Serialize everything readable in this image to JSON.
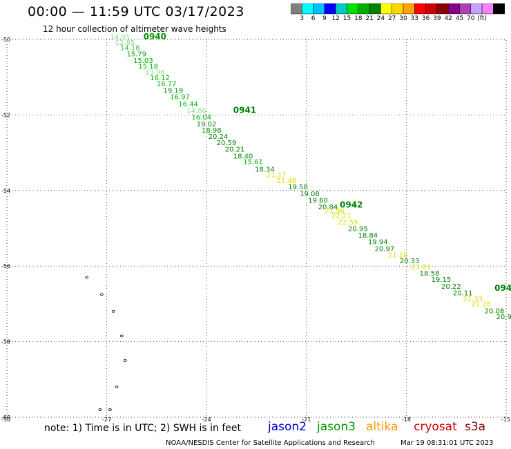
{
  "title": "00:00 — 11:59 UTC 03/17/2023",
  "subtitle": "12 hour collection of altimeter wave heights",
  "color_scale": {
    "colors": [
      "#808080",
      "#00ffff",
      "#00bfff",
      "#0000ff",
      "#00c8c8",
      "#00e000",
      "#00b000",
      "#008000",
      "#ffff00",
      "#ffd700",
      "#ffa500",
      "#ff0000",
      "#cc0000",
      "#8b0000",
      "#8b008b",
      "#b040b0",
      "#c8a0ff",
      "#ff80ff",
      "#000000"
    ],
    "labels": [
      "3",
      "6",
      "9",
      "12",
      "15",
      "18",
      "21",
      "24",
      "27",
      "30",
      "33",
      "36",
      "39",
      "42",
      "45",
      "70",
      "(ft)"
    ]
  },
  "footer": {
    "note": "note: 1) Time is in UTC; 2) SWH is in feet",
    "satellites": [
      {
        "name": "jason2",
        "color": "#0000cc"
      },
      {
        "name": "jason3",
        "color": "#009900"
      },
      {
        "name": "altika",
        "color": "#ff9900"
      },
      {
        "name": "cryosat",
        "color": "#cc0000"
      },
      {
        "name": "s3a",
        "color": "#880000"
      }
    ],
    "credit": "NOAA/NESDIS Center for Satellite Applications and Research",
    "timestamp": "Mar 19 08:31:01 UTC 2023"
  },
  "chart_data": {
    "type": "scatter",
    "title": "00:00 — 11:59 UTC 03/17/2023",
    "subtitle": "12 hour collection of altimeter wave heights",
    "xlabel": "",
    "ylabel": "",
    "xlim": [
      -30,
      -15
    ],
    "ylim": [
      -60,
      -50
    ],
    "x_ticks": [
      -30,
      -27,
      -24,
      -21,
      -18,
      -15
    ],
    "y_ticks": [
      -50,
      -52,
      -54,
      -56,
      -58,
      -60
    ],
    "x_tick_labels": [
      "-30",
      "-27",
      "-24",
      "-21",
      "-18",
      "-15"
    ],
    "y_tick_labels": [
      "-50",
      "-52",
      "-54",
      "-56",
      "-58",
      "-60"
    ],
    "grid": true,
    "time_labels": [
      {
        "label": "0940",
        "x": -25.9,
        "y": -50.0,
        "color": "#009900"
      },
      {
        "label": "0941",
        "x": -23.2,
        "y": -51.95,
        "color": "#008000"
      },
      {
        "label": "0942",
        "x": -20.0,
        "y": -54.45,
        "color": "#008000"
      },
      {
        "label": "094",
        "x": -15.35,
        "y": -56.65,
        "color": "#008000"
      }
    ],
    "points": [
      {
        "x": -26.9,
        "y": -50.0,
        "swh": "14.05",
        "color": "#88dd88"
      },
      {
        "x": -26.75,
        "y": -50.15,
        "swh": "12.85",
        "color": "#88dd88"
      },
      {
        "x": -26.6,
        "y": -50.28,
        "swh": "14.18",
        "color": "#44bb44"
      },
      {
        "x": -26.4,
        "y": -50.45,
        "swh": "15.79",
        "color": "#00b000"
      },
      {
        "x": -26.2,
        "y": -50.62,
        "swh": "15.03",
        "color": "#00b000"
      },
      {
        "x": -26.05,
        "y": -50.78,
        "swh": "15.18",
        "color": "#00b000"
      },
      {
        "x": -25.85,
        "y": -50.93,
        "swh": "13.96",
        "color": "#88dd88"
      },
      {
        "x": -25.7,
        "y": -51.08,
        "swh": "16.12",
        "color": "#00b000"
      },
      {
        "x": -25.5,
        "y": -51.23,
        "swh": "16.77",
        "color": "#00b000"
      },
      {
        "x": -25.3,
        "y": -51.42,
        "swh": "19.19",
        "color": "#008000"
      },
      {
        "x": -25.1,
        "y": -51.58,
        "swh": "16.97",
        "color": "#00b000"
      },
      {
        "x": -24.85,
        "y": -51.77,
        "swh": "16.44",
        "color": "#00b000"
      },
      {
        "x": -24.6,
        "y": -51.95,
        "swh": "14.86",
        "color": "#88dd88"
      },
      {
        "x": -24.45,
        "y": -52.12,
        "swh": "16.04",
        "color": "#00b000"
      },
      {
        "x": -24.3,
        "y": -52.3,
        "swh": "19.02",
        "color": "#008000"
      },
      {
        "x": -24.15,
        "y": -52.47,
        "swh": "18.98",
        "color": "#008000"
      },
      {
        "x": -23.95,
        "y": -52.63,
        "swh": "20.24",
        "color": "#008000"
      },
      {
        "x": -23.7,
        "y": -52.8,
        "swh": "20.59",
        "color": "#008000"
      },
      {
        "x": -23.45,
        "y": -52.97,
        "swh": "20.21",
        "color": "#008000"
      },
      {
        "x": -23.2,
        "y": -53.15,
        "swh": "18.40",
        "color": "#008000"
      },
      {
        "x": -22.9,
        "y": -53.3,
        "swh": "15.61",
        "color": "#00b000"
      },
      {
        "x": -22.55,
        "y": -53.5,
        "swh": "18.34",
        "color": "#008000"
      },
      {
        "x": -22.2,
        "y": -53.65,
        "swh": "21.17",
        "color": "#dddd00"
      },
      {
        "x": -21.9,
        "y": -53.8,
        "swh": "21.48",
        "color": "#dddd00"
      },
      {
        "x": -21.55,
        "y": -53.97,
        "swh": "19.58",
        "color": "#008000"
      },
      {
        "x": -21.2,
        "y": -54.15,
        "swh": "19.08",
        "color": "#008000"
      },
      {
        "x": -20.95,
        "y": -54.32,
        "swh": "19.60",
        "color": "#008000"
      },
      {
        "x": -20.65,
        "y": -54.5,
        "swh": "20.84",
        "color": "#008000"
      },
      {
        "x": -20.45,
        "y": -54.6,
        "swh": "21.96",
        "color": "#dddd00"
      },
      {
        "x": -20.25,
        "y": -54.73,
        "swh": "22.21",
        "color": "#dddd00"
      },
      {
        "x": -20.05,
        "y": -54.9,
        "swh": "22.59",
        "color": "#dddd00"
      },
      {
        "x": -19.75,
        "y": -55.07,
        "swh": "20.95",
        "color": "#008000"
      },
      {
        "x": -19.45,
        "y": -55.25,
        "swh": "18.84",
        "color": "#008000"
      },
      {
        "x": -19.15,
        "y": -55.42,
        "swh": "19.94",
        "color": "#008000"
      },
      {
        "x": -18.95,
        "y": -55.6,
        "swh": "20.97",
        "color": "#008000"
      },
      {
        "x": -18.55,
        "y": -55.77,
        "swh": "21.16",
        "color": "#dddd00"
      },
      {
        "x": -18.2,
        "y": -55.92,
        "swh": "20.33",
        "color": "#008000"
      },
      {
        "x": -17.85,
        "y": -56.08,
        "swh": "21.01",
        "color": "#dddd00"
      },
      {
        "x": -17.6,
        "y": -56.25,
        "swh": "18.58",
        "color": "#008000"
      },
      {
        "x": -17.25,
        "y": -56.42,
        "swh": "19.15",
        "color": "#008000"
      },
      {
        "x": -16.95,
        "y": -56.6,
        "swh": "20.22",
        "color": "#008000"
      },
      {
        "x": -16.6,
        "y": -56.77,
        "swh": "20.11",
        "color": "#008000"
      },
      {
        "x": -16.3,
        "y": -56.93,
        "swh": "21.33",
        "color": "#dddd00"
      },
      {
        "x": -16.05,
        "y": -57.07,
        "swh": "21.26",
        "color": "#dddd00"
      },
      {
        "x": -15.65,
        "y": -57.25,
        "swh": "20.08",
        "color": "#008000"
      },
      {
        "x": -15.3,
        "y": -57.4,
        "swh": "20.9",
        "color": "#008000"
      }
    ],
    "islands": [
      {
        "x": -27.6,
        "y": -56.3
      },
      {
        "x": -27.15,
        "y": -56.75
      },
      {
        "x": -26.8,
        "y": -57.2
      },
      {
        "x": -26.55,
        "y": -57.85
      },
      {
        "x": -26.45,
        "y": -58.5
      },
      {
        "x": -26.7,
        "y": -59.2
      },
      {
        "x": -27.2,
        "y": -59.8
      },
      {
        "x": -26.9,
        "y": -59.8
      }
    ]
  }
}
